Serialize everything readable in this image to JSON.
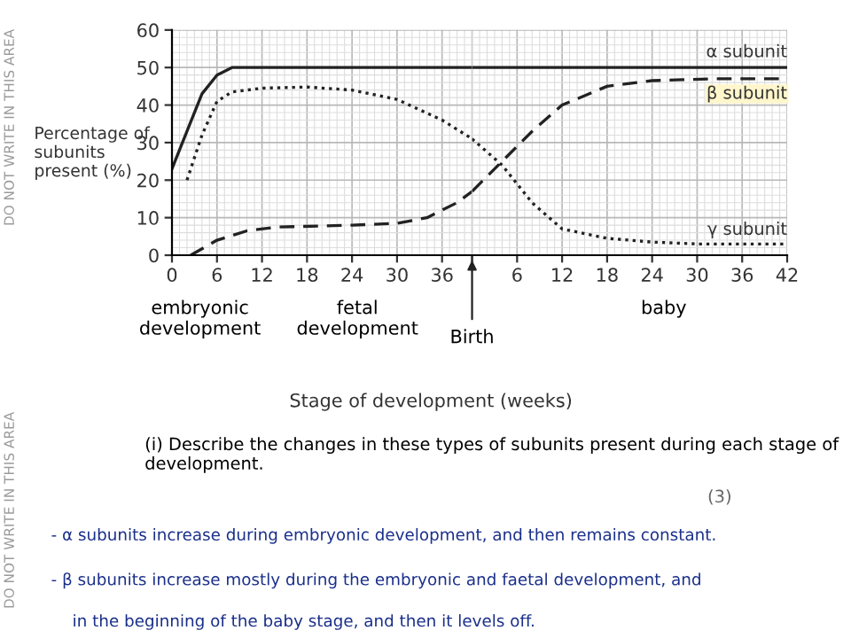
{
  "chart_data": [
    {
      "type": "line",
      "ylabel": "Percentage of subunits present (%)",
      "xlim": [
        0,
        40
      ],
      "ylim": [
        0,
        60
      ],
      "xticks": [
        0,
        6,
        12,
        18,
        24,
        30,
        36,
        {
          "value": 40,
          "label": null
        }
      ],
      "yticks": [
        0,
        10,
        20,
        30,
        40,
        50,
        60
      ],
      "grid": true,
      "marker": "none",
      "series": [
        {
          "color": "#222222",
          "line_style": "solid",
          "x": [
            0,
            2,
            4,
            6,
            8,
            40
          ],
          "values": [
            23,
            33,
            43,
            48,
            50,
            50
          ]
        },
        {
          "color": "#222222",
          "line_style": "dashed",
          "x": [
            2.5,
            6,
            10,
            14,
            24,
            30,
            34,
            38,
            40
          ],
          "values": [
            0,
            4,
            6.5,
            7.5,
            8,
            8.5,
            10,
            14,
            17
          ]
        },
        {
          "color": "#222222",
          "line_style": "dotted",
          "x": [
            2,
            4,
            6,
            8,
            12,
            18,
            24,
            30,
            36,
            40
          ],
          "values": [
            20,
            32,
            41,
            43.5,
            44.5,
            44.8,
            44,
            41.5,
            36,
            31
          ]
        }
      ],
      "annotations": [
        "embryonic development",
        "fetal development",
        "Birth",
        "Stage of development (weeks)",
        "(i) Describe the changes in these types of subunits present during each stage of development.",
        "(3)",
        "- α subunits increase during embryonic development, and then remains constant.",
        "- β subunits increase mostly during the embryonic and faetal development, and",
        "in the beginning of the baby stage, and then it levels off.",
        "DO NOT WRITE IN THIS AREA",
        "DO NOT WRITE IN THIS AREA"
      ]
    },
    {
      "type": "line",
      "xlim": [
        0,
        42
      ],
      "ylim": [
        0,
        60
      ],
      "xticks": [
        {
          "value": 0,
          "label": null
        },
        6,
        12,
        18,
        24,
        30,
        36,
        42
      ],
      "yticks": [
        0,
        10,
        20,
        30,
        40,
        50,
        60
      ],
      "tick_labels": "x",
      "grid": true,
      "marker": "none",
      "series": [
        {
          "name": "α subunit",
          "color": "#222222",
          "line_style": "solid",
          "x": [
            0,
            42
          ],
          "values": [
            50,
            50
          ]
        },
        {
          "name": "β subunit",
          "color": "#222222",
          "line_style": "dashed",
          "x": [
            0,
            4,
            8,
            12,
            18,
            24,
            32,
            42
          ],
          "values": [
            17,
            25,
            33,
            40,
            45,
            46.5,
            47,
            47
          ]
        },
        {
          "name": "γ subunit",
          "color": "#222222",
          "line_style": "dotted",
          "x": [
            0,
            4,
            8,
            12,
            18,
            24,
            30,
            42
          ],
          "values": [
            31,
            24,
            14,
            7,
            4.5,
            3.5,
            3,
            3
          ]
        }
      ],
      "annotations": [
        "baby"
      ]
    }
  ]
}
